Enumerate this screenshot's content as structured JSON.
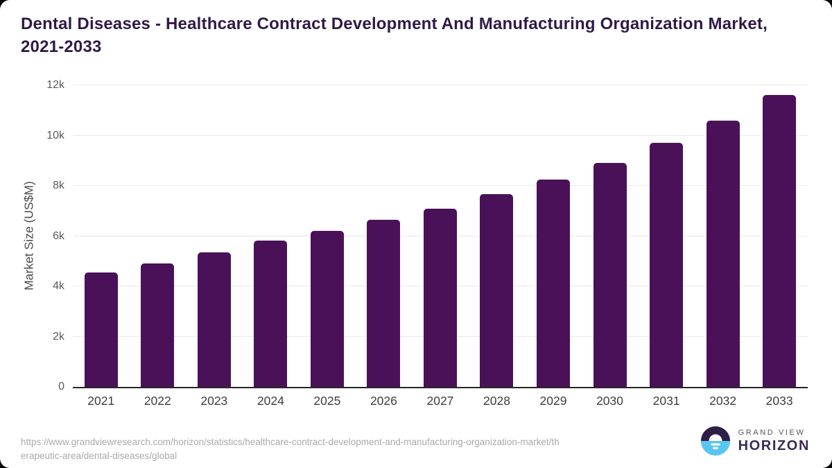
{
  "page": {
    "title_line1": "Dental Diseases - Healthcare Contract Development And Manufacturing Organization Market,",
    "title_line2": "2021-2033",
    "source_url_lines": {
      "0": "https://www.grandviewresearch.com/horizon/statistics/healthcare-contract-development-and-manufacturing-organization-market/th",
      "1": "erapeutic-area/dental-diseases/global"
    },
    "logo": {
      "icon": "horizon-sun-icon",
      "top": "GRAND VIEW",
      "bottom": "HORIZON"
    }
  },
  "chart_data": {
    "type": "bar",
    "title": "Dental Diseases - Healthcare Contract Development And Manufacturing Organization Market, 2021-2033",
    "categories": [
      "2021",
      "2022",
      "2023",
      "2024",
      "2025",
      "2026",
      "2027",
      "2028",
      "2029",
      "2030",
      "2031",
      "2032",
      "2033"
    ],
    "values": [
      4540,
      4920,
      5340,
      5830,
      6220,
      6640,
      7090,
      7660,
      8260,
      8910,
      9720,
      10600,
      11610
    ],
    "xlabel": "",
    "ylabel": "Market Size (US$M)",
    "ylim": [
      0,
      12000
    ],
    "ytick_values": [
      0,
      2000,
      4000,
      6000,
      8000,
      10000,
      12000
    ],
    "ytick_labels": [
      "0",
      "2k",
      "4k",
      "6k",
      "8k",
      "10k",
      "12k"
    ],
    "grid": true,
    "legend": false
  },
  "colors": {
    "bar": "#4a1158",
    "title": "#2e1a47",
    "gridline": "#e8e8e8",
    "axis_line": "#262626",
    "tick_text": "#595959",
    "x_tick_text": "#3d3d3d",
    "source_text": "#a9a9a9",
    "logo_dark": "#2e1f47",
    "logo_blue": "#57c6f0",
    "card_background": "#ffffff"
  }
}
